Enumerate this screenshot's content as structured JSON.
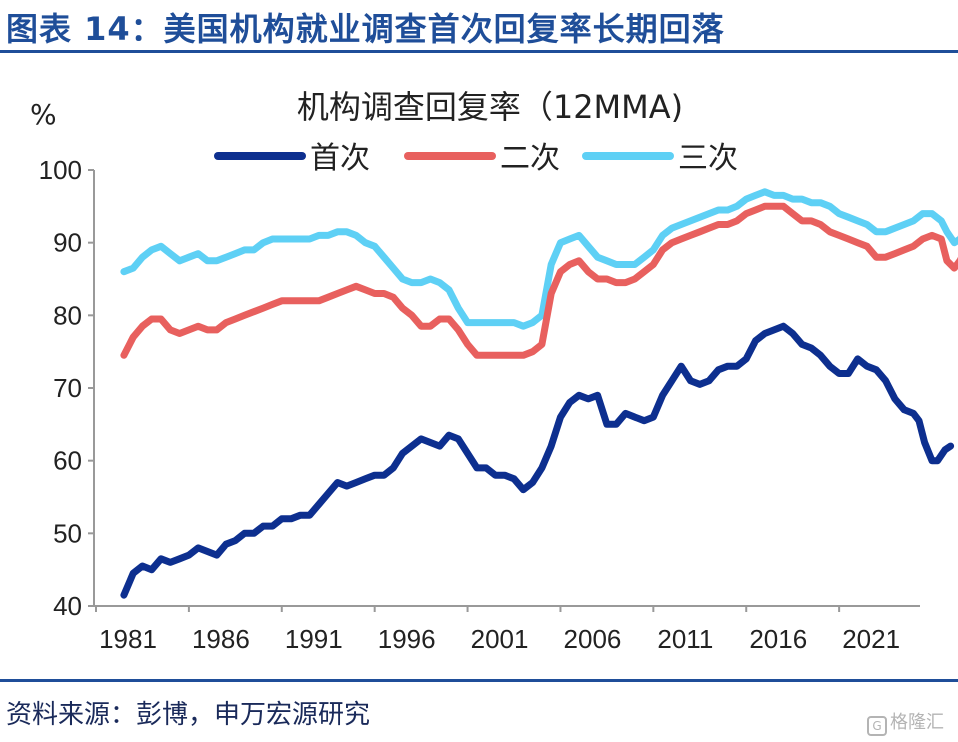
{
  "figure_title": "图表 14：美国机构就业调查首次回复率长期回落",
  "source": "资料来源：彭博，申万宏源研究",
  "watermark": "格隆汇",
  "colors": {
    "title": "#1f4e99",
    "first": "#0d2f8f",
    "second": "#e8605e",
    "third": "#5ed0f5",
    "axis": "#999999"
  },
  "chart_data": {
    "type": "line",
    "title": "机构调查回复率（12MMA)",
    "ylabel": "%",
    "xlabel": "",
    "ylim": [
      40,
      100
    ],
    "xlim": [
      1981,
      2025.5
    ],
    "yticks": [
      40,
      50,
      60,
      70,
      80,
      90,
      100
    ],
    "xticks": [
      1981,
      1986,
      1991,
      1996,
      2001,
      2006,
      2011,
      2016,
      2021
    ],
    "grid": false,
    "legend_position": "top",
    "series": [
      {
        "name": "首次",
        "color": "#0d2f8f",
        "points": [
          [
            1982.5,
            41.5
          ],
          [
            1983,
            44.5
          ],
          [
            1983.5,
            45.5
          ],
          [
            1984,
            45
          ],
          [
            1984.5,
            46.5
          ],
          [
            1985,
            46
          ],
          [
            1985.5,
            46.5
          ],
          [
            1986,
            47
          ],
          [
            1986.5,
            48
          ],
          [
            1987,
            47.5
          ],
          [
            1987.5,
            47
          ],
          [
            1988,
            48.5
          ],
          [
            1988.5,
            49
          ],
          [
            1989,
            50
          ],
          [
            1989.5,
            50
          ],
          [
            1990,
            51
          ],
          [
            1990.5,
            51
          ],
          [
            1991,
            52
          ],
          [
            1991.5,
            52
          ],
          [
            1992,
            52.5
          ],
          [
            1992.5,
            52.5
          ],
          [
            1993,
            54
          ],
          [
            1993.5,
            55.5
          ],
          [
            1994,
            57
          ],
          [
            1994.5,
            56.5
          ],
          [
            1995,
            57
          ],
          [
            1995.5,
            57.5
          ],
          [
            1996,
            58
          ],
          [
            1996.5,
            58
          ],
          [
            1997,
            59
          ],
          [
            1997.5,
            61
          ],
          [
            1998,
            62
          ],
          [
            1998.5,
            63
          ],
          [
            1999,
            62.5
          ],
          [
            1999.5,
            62
          ],
          [
            2000,
            63.5
          ],
          [
            2000.5,
            63
          ],
          [
            2001,
            61
          ],
          [
            2001.5,
            59
          ],
          [
            2002,
            59
          ],
          [
            2002.5,
            58
          ],
          [
            2003,
            58
          ],
          [
            2003.5,
            57.5
          ],
          [
            2004,
            56
          ],
          [
            2004.5,
            57
          ],
          [
            2005,
            59
          ],
          [
            2005.5,
            62
          ],
          [
            2006,
            66
          ],
          [
            2006.5,
            68
          ],
          [
            2007,
            69
          ],
          [
            2007.5,
            68.5
          ],
          [
            2008,
            69
          ],
          [
            2008.5,
            65
          ],
          [
            2009,
            65
          ],
          [
            2009.5,
            66.5
          ],
          [
            2010,
            66
          ],
          [
            2010.5,
            65.5
          ],
          [
            2011,
            66
          ],
          [
            2011.5,
            69
          ],
          [
            2012,
            71
          ],
          [
            2012.5,
            73
          ],
          [
            2013,
            71
          ],
          [
            2013.5,
            70.5
          ],
          [
            2014,
            71
          ],
          [
            2014.5,
            72.5
          ],
          [
            2015,
            73
          ],
          [
            2015.5,
            73
          ],
          [
            2016,
            74
          ],
          [
            2016.5,
            76.5
          ],
          [
            2017,
            77.5
          ],
          [
            2017.5,
            78
          ],
          [
            2018,
            78.5
          ],
          [
            2018.5,
            77.5
          ],
          [
            2019,
            76
          ],
          [
            2019.5,
            75.5
          ],
          [
            2020,
            74.5
          ],
          [
            2020.5,
            73
          ],
          [
            2021,
            72
          ],
          [
            2021.5,
            72
          ],
          [
            2022,
            74
          ],
          [
            2022.5,
            73
          ],
          [
            2023,
            72.5
          ],
          [
            2023.5,
            71
          ],
          [
            2024,
            68.5
          ],
          [
            2024.5,
            67
          ],
          [
            2025,
            66.5
          ],
          [
            2025.3,
            65.5
          ],
          [
            2025.6,
            62.5
          ],
          [
            2026,
            60
          ],
          [
            2026.3,
            60
          ],
          [
            2026.7,
            61.5
          ],
          [
            2027,
            62
          ]
        ]
      },
      {
        "name": "二次",
        "color": "#e8605e",
        "points": [
          [
            1982.5,
            74.5
          ],
          [
            1983,
            77
          ],
          [
            1983.5,
            78.5
          ],
          [
            1984,
            79.5
          ],
          [
            1984.5,
            79.5
          ],
          [
            1985,
            78
          ],
          [
            1985.5,
            77.5
          ],
          [
            1986,
            78
          ],
          [
            1986.5,
            78.5
          ],
          [
            1987,
            78
          ],
          [
            1987.5,
            78
          ],
          [
            1988,
            79
          ],
          [
            1988.5,
            79.5
          ],
          [
            1989,
            80
          ],
          [
            1989.5,
            80.5
          ],
          [
            1990,
            81
          ],
          [
            1990.5,
            81.5
          ],
          [
            1991,
            82
          ],
          [
            1991.5,
            82
          ],
          [
            1992,
            82
          ],
          [
            1992.5,
            82
          ],
          [
            1993,
            82
          ],
          [
            1993.5,
            82.5
          ],
          [
            1994,
            83
          ],
          [
            1994.5,
            83.5
          ],
          [
            1995,
            84
          ],
          [
            1995.5,
            83.5
          ],
          [
            1996,
            83
          ],
          [
            1996.5,
            83
          ],
          [
            1997,
            82.5
          ],
          [
            1997.5,
            81
          ],
          [
            1998,
            80
          ],
          [
            1998.5,
            78.5
          ],
          [
            1999,
            78.5
          ],
          [
            1999.5,
            79.5
          ],
          [
            2000,
            79.5
          ],
          [
            2000.5,
            78
          ],
          [
            2001,
            76
          ],
          [
            2001.5,
            74.5
          ],
          [
            2002,
            74.5
          ],
          [
            2002.5,
            74.5
          ],
          [
            2003,
            74.5
          ],
          [
            2003.5,
            74.5
          ],
          [
            2004,
            74.5
          ],
          [
            2004.5,
            75
          ],
          [
            2005,
            76
          ],
          [
            2005.5,
            83
          ],
          [
            2006,
            86
          ],
          [
            2006.5,
            87
          ],
          [
            2007,
            87.5
          ],
          [
            2007.5,
            86
          ],
          [
            2008,
            85
          ],
          [
            2008.5,
            85
          ],
          [
            2009,
            84.5
          ],
          [
            2009.5,
            84.5
          ],
          [
            2010,
            85
          ],
          [
            2010.5,
            86
          ],
          [
            2011,
            87
          ],
          [
            2011.5,
            89
          ],
          [
            2012,
            90
          ],
          [
            2012.5,
            90.5
          ],
          [
            2013,
            91
          ],
          [
            2013.5,
            91.5
          ],
          [
            2014,
            92
          ],
          [
            2014.5,
            92.5
          ],
          [
            2015,
            92.5
          ],
          [
            2015.5,
            93
          ],
          [
            2016,
            94
          ],
          [
            2016.5,
            94.5
          ],
          [
            2017,
            95
          ],
          [
            2017.5,
            95
          ],
          [
            2018,
            95
          ],
          [
            2018.5,
            94
          ],
          [
            2019,
            93
          ],
          [
            2019.5,
            93
          ],
          [
            2020,
            92.5
          ],
          [
            2020.5,
            91.5
          ],
          [
            2021,
            91
          ],
          [
            2021.5,
            90.5
          ],
          [
            2022,
            90
          ],
          [
            2022.5,
            89.5
          ],
          [
            2023,
            88
          ],
          [
            2023.5,
            88
          ],
          [
            2024,
            88.5
          ],
          [
            2024.5,
            89
          ],
          [
            2025,
            89.5
          ],
          [
            2025.5,
            90.5
          ],
          [
            2026,
            91
          ],
          [
            2026.5,
            90.5
          ],
          [
            2026.8,
            87.5
          ],
          [
            2027.2,
            86.5
          ],
          [
            2027.5,
            87.5
          ],
          [
            2028,
            90
          ],
          [
            2028.5,
            92
          ]
        ]
      },
      {
        "name": "三次",
        "color": "#5ed0f5",
        "points": [
          [
            1982.5,
            86
          ],
          [
            1983,
            86.5
          ],
          [
            1983.5,
            88
          ],
          [
            1984,
            89
          ],
          [
            1984.5,
            89.5
          ],
          [
            1985,
            88.5
          ],
          [
            1985.5,
            87.5
          ],
          [
            1986,
            88
          ],
          [
            1986.5,
            88.5
          ],
          [
            1987,
            87.5
          ],
          [
            1987.5,
            87.5
          ],
          [
            1988,
            88
          ],
          [
            1988.5,
            88.5
          ],
          [
            1989,
            89
          ],
          [
            1989.5,
            89
          ],
          [
            1990,
            90
          ],
          [
            1990.5,
            90.5
          ],
          [
            1991,
            90.5
          ],
          [
            1991.5,
            90.5
          ],
          [
            1992,
            90.5
          ],
          [
            1992.5,
            90.5
          ],
          [
            1993,
            91
          ],
          [
            1993.5,
            91
          ],
          [
            1994,
            91.5
          ],
          [
            1994.5,
            91.5
          ],
          [
            1995,
            91
          ],
          [
            1995.5,
            90
          ],
          [
            1996,
            89.5
          ],
          [
            1996.5,
            88
          ],
          [
            1997,
            86.5
          ],
          [
            1997.5,
            85
          ],
          [
            1998,
            84.5
          ],
          [
            1998.5,
            84.5
          ],
          [
            1999,
            85
          ],
          [
            1999.5,
            84.5
          ],
          [
            2000,
            83.5
          ],
          [
            2000.5,
            81
          ],
          [
            2001,
            79
          ],
          [
            2001.5,
            79
          ],
          [
            2002,
            79
          ],
          [
            2002.5,
            79
          ],
          [
            2003,
            79
          ],
          [
            2003.5,
            79
          ],
          [
            2004,
            78.5
          ],
          [
            2004.5,
            79
          ],
          [
            2005,
            80
          ],
          [
            2005.5,
            87
          ],
          [
            2006,
            90
          ],
          [
            2006.5,
            90.5
          ],
          [
            2007,
            91
          ],
          [
            2007.5,
            89.5
          ],
          [
            2008,
            88
          ],
          [
            2008.5,
            87.5
          ],
          [
            2009,
            87
          ],
          [
            2009.5,
            87
          ],
          [
            2010,
            87
          ],
          [
            2010.5,
            88
          ],
          [
            2011,
            89
          ],
          [
            2011.5,
            91
          ],
          [
            2012,
            92
          ],
          [
            2012.5,
            92.5
          ],
          [
            2013,
            93
          ],
          [
            2013.5,
            93.5
          ],
          [
            2014,
            94
          ],
          [
            2014.5,
            94.5
          ],
          [
            2015,
            94.5
          ],
          [
            2015.5,
            95
          ],
          [
            2016,
            96
          ],
          [
            2016.5,
            96.5
          ],
          [
            2017,
            97
          ],
          [
            2017.5,
            96.5
          ],
          [
            2018,
            96.5
          ],
          [
            2018.5,
            96
          ],
          [
            2019,
            96
          ],
          [
            2019.5,
            95.5
          ],
          [
            2020,
            95.5
          ],
          [
            2020.5,
            95
          ],
          [
            2021,
            94
          ],
          [
            2021.5,
            93.5
          ],
          [
            2022,
            93
          ],
          [
            2022.5,
            92.5
          ],
          [
            2023,
            91.5
          ],
          [
            2023.5,
            91.5
          ],
          [
            2024,
            92
          ],
          [
            2024.5,
            92.5
          ],
          [
            2025,
            93
          ],
          [
            2025.5,
            94
          ],
          [
            2026,
            94
          ],
          [
            2026.5,
            93
          ],
          [
            2026.8,
            91.5
          ],
          [
            2027.2,
            90
          ],
          [
            2027.5,
            90.5
          ],
          [
            2028,
            92.5
          ],
          [
            2028.5,
            94
          ]
        ]
      }
    ]
  }
}
